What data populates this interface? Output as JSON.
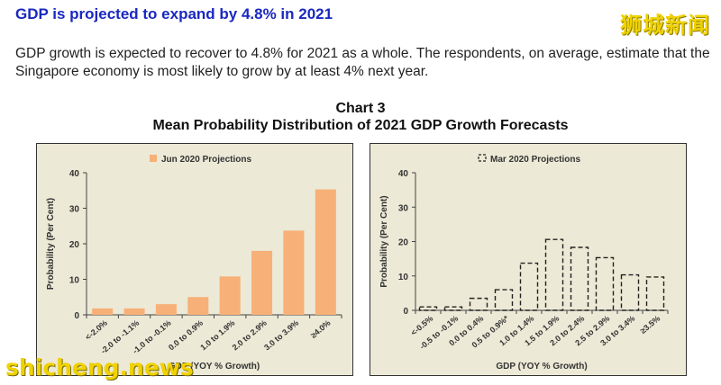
{
  "headline": "GDP is projected to expand by 4.8% in 2021",
  "paragraph": "GDP growth is expected to recover to 4.8% for 2021 as a whole. The respondents, on average, estimate that the Singapore economy is most likely to grow by at least 4% next year.",
  "watermark_top": "狮城新闻",
  "watermark_bottom": "shicheng.news",
  "chart_heading": {
    "line1": "Chart 3",
    "line2": "Mean Probability Distribution of 2021 GDP Growth Forecasts"
  },
  "chart_data": [
    {
      "type": "bar",
      "legend": "Jun 2020 Projections",
      "categories": [
        "<-2.0%",
        "-2.0 to -1.1%",
        "-1.0 to -0.1%",
        "0.0 to 0.9%",
        "1.0 to 1.9%",
        "2.0 to 2.9%",
        "3.0 to 3.9%",
        "≥4.0%"
      ],
      "values": [
        1.8,
        1.8,
        3.0,
        5.0,
        10.8,
        18.0,
        23.7,
        35.3
      ],
      "xlabel": "GDP (YOY % Growth)",
      "ylabel": "Probability  (Per Cent)",
      "ylim": [
        0,
        40
      ],
      "yticks": [
        "0",
        "10",
        "20",
        "30",
        "40"
      ],
      "bar_color": "#f7b077",
      "bar_style": "solid"
    },
    {
      "type": "bar",
      "legend": "Mar 2020 Projections",
      "categories": [
        "<-0.5%",
        "-0.5 to -0.1%",
        "0.0 to 0.4%",
        "0.5 to 0.9%*",
        "1.0 to 1.4%",
        "1.5 to 1.9%",
        "2.0 to 2.4%",
        "2.5 to 2.9%",
        "3.0 to 3.4%",
        "≥3.5%"
      ],
      "values": [
        1.0,
        1.0,
        3.5,
        6.0,
        13.7,
        20.6,
        18.3,
        15.3,
        10.3,
        9.7
      ],
      "xlabel": "GDP (YOY % Growth)",
      "ylabel": "Probability  (Per Cent)",
      "ylim": [
        0,
        40
      ],
      "yticks": [
        "0",
        "10",
        "20",
        "30",
        "40"
      ],
      "bar_color": "#222222",
      "bar_style": "dashed"
    }
  ]
}
